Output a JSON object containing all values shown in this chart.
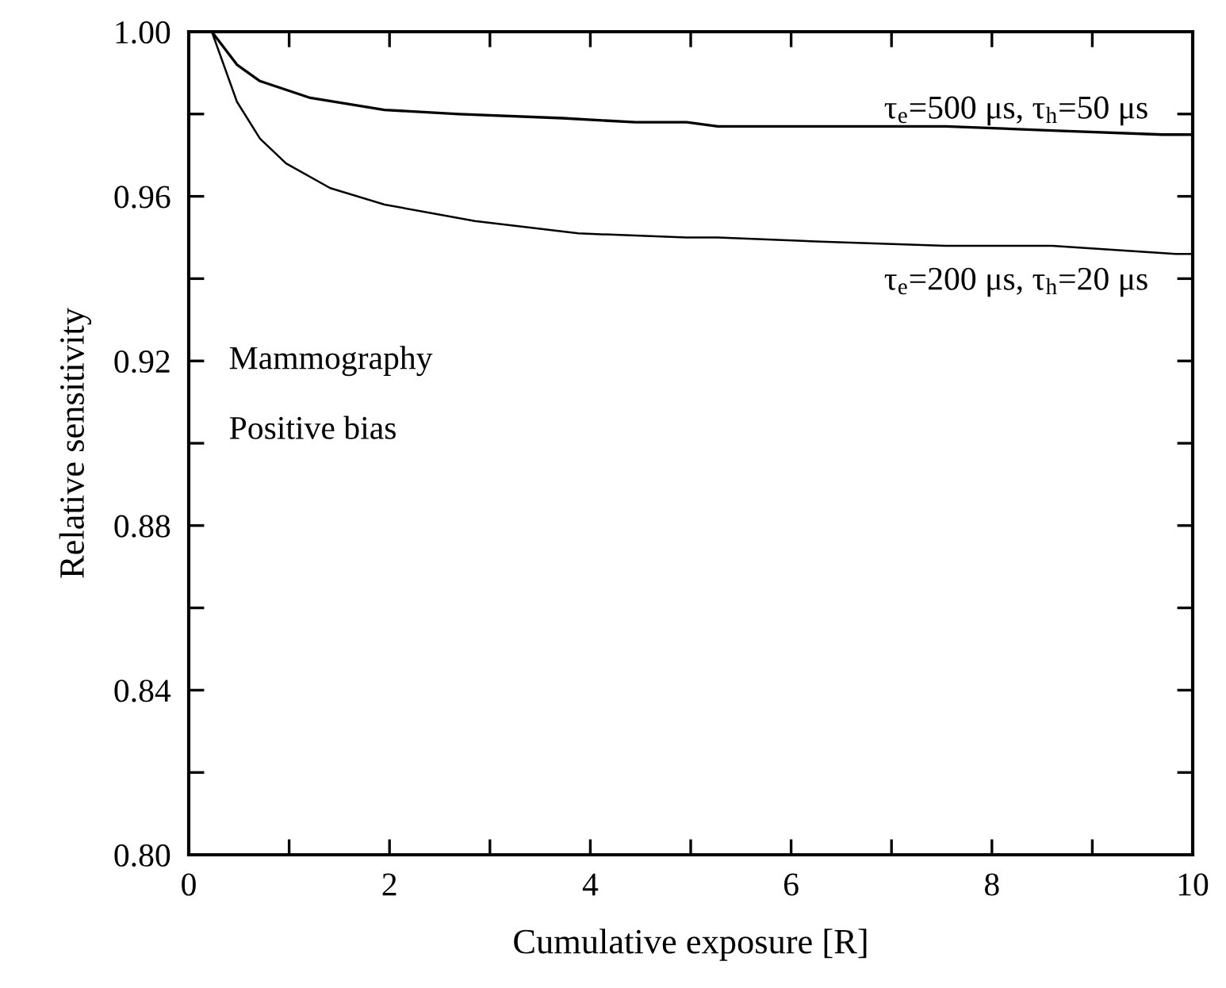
{
  "chart_data": {
    "type": "line",
    "xlabel": "Cumulative exposure [R]",
    "ylabel": "Relative sensitivity",
    "xlim": [
      0,
      10
    ],
    "ylim": [
      0.8,
      1.0
    ],
    "xticks": [
      0,
      {
        "value": 1,
        "label": null
      },
      2,
      {
        "value": 3,
        "label": null
      },
      4,
      {
        "value": 5,
        "label": null
      },
      6,
      {
        "value": 7,
        "label": null
      },
      8,
      {
        "value": 9,
        "label": null
      },
      10
    ],
    "yticks": [
      {
        "value": 0.8,
        "label": "0.80"
      },
      {
        "value": 0.82,
        "label": null
      },
      0.84,
      {
        "value": 0.86,
        "label": null
      },
      0.88,
      {
        "value": 0.9,
        "label": null
      },
      0.92,
      {
        "value": 0.94,
        "label": null
      },
      0.96,
      {
        "value": 0.98,
        "label": null
      },
      {
        "value": 1.0,
        "label": "1.00"
      }
    ],
    "grid": false,
    "legend": "right",
    "marker": "none",
    "line_style": "solid",
    "annotations": [
      "Mammography",
      "Positive bias"
    ],
    "series": [
      {
        "name": "τ$_{e}$=500 μs, τ$_{h}$=50 μs",
        "color": "#000000",
        "x": [
          0.23,
          0.48,
          0.71,
          1.2,
          1.95,
          2.69,
          3.72,
          4.45,
          4.96,
          5.27,
          6.3,
          7.54,
          8.6,
          9.7,
          10
        ],
        "values": [
          1.0,
          0.992,
          0.988,
          0.984,
          0.981,
          0.98,
          0.979,
          0.978,
          0.978,
          0.977,
          0.977,
          0.977,
          0.976,
          0.975,
          0.975
        ]
      },
      {
        "name": "τ$_{e}$=200 μs, τ$_{h}$=20 μs",
        "color": "#000000",
        "x": [
          0.23,
          0.48,
          0.71,
          0.97,
          1.41,
          1.95,
          2.85,
          3.88,
          4.96,
          5.27,
          6.3,
          7.54,
          8.6,
          9.83,
          10
        ],
        "values": [
          1.0,
          0.983,
          0.974,
          0.968,
          0.962,
          0.958,
          0.954,
          0.951,
          0.95,
          0.95,
          0.949,
          0.948,
          0.948,
          0.946,
          0.946
        ]
      }
    ]
  }
}
